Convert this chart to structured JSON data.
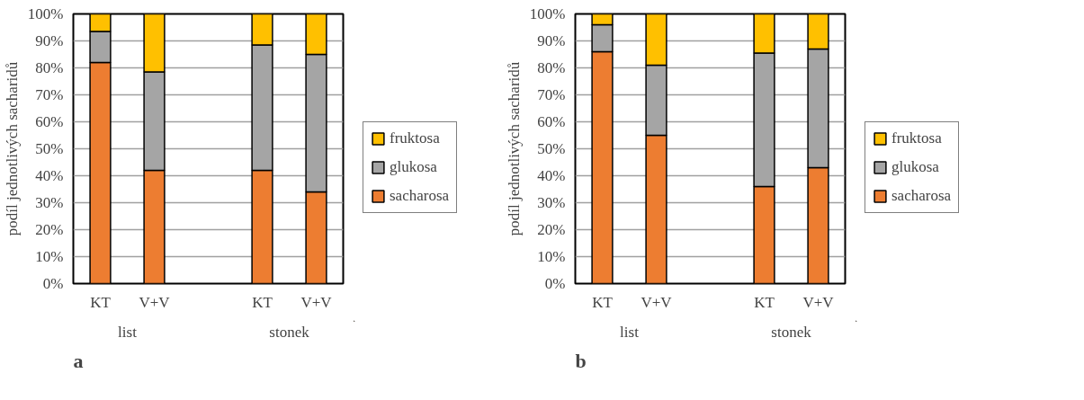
{
  "chart_data": [
    {
      "type": "bar",
      "stacked": true,
      "categories": [
        "KT",
        "V+V",
        null,
        "KT",
        "V+V"
      ],
      "ylabel": "podíl jednotlivých sacharidů",
      "ylim": [
        0,
        100
      ],
      "yticks": [
        {
          "value": 0,
          "label": "0%"
        },
        {
          "value": 10,
          "label": "10%"
        },
        {
          "value": 20,
          "label": "20%"
        },
        {
          "value": 30,
          "label": "30%"
        },
        {
          "value": 40,
          "label": "40%"
        },
        {
          "value": 50,
          "label": "50%"
        },
        {
          "value": 60,
          "label": "60%"
        },
        {
          "value": 70,
          "label": "70%"
        },
        {
          "value": 80,
          "label": "80%"
        },
        {
          "value": 90,
          "label": "90%"
        },
        {
          "value": 100,
          "label": "100%"
        }
      ],
      "grid": "y",
      "legend": "right",
      "annotations": [
        "list",
        "stonek",
        "a"
      ],
      "series": [
        {
          "name": "sacharosa",
          "color": "#ed7d31",
          "values": [
            82,
            42,
            null,
            42,
            34
          ]
        },
        {
          "name": "glukosa",
          "color": "#a5a5a5",
          "values": [
            11.5,
            36.5,
            null,
            46.5,
            51
          ]
        },
        {
          "name": "fruktosa",
          "color": "#ffc000",
          "values": [
            6.5,
            21.5,
            null,
            11.5,
            15
          ]
        }
      ]
    },
    {
      "type": "bar",
      "stacked": true,
      "categories": [
        "KT",
        "V+V",
        null,
        "KT",
        "V+V"
      ],
      "ylabel": "podíl jednotlivých sacharidů",
      "ylim": [
        0,
        100
      ],
      "yticks": [
        {
          "value": 0,
          "label": "0%"
        },
        {
          "value": 10,
          "label": "10%"
        },
        {
          "value": 20,
          "label": "20%"
        },
        {
          "value": 30,
          "label": "30%"
        },
        {
          "value": 40,
          "label": "40%"
        },
        {
          "value": 50,
          "label": "50%"
        },
        {
          "value": 60,
          "label": "60%"
        },
        {
          "value": 70,
          "label": "70%"
        },
        {
          "value": 80,
          "label": "80%"
        },
        {
          "value": 90,
          "label": "90%"
        },
        {
          "value": 100,
          "label": "100%"
        }
      ],
      "grid": "y",
      "legend": "right",
      "annotations": [
        "list",
        "stonek",
        "b"
      ],
      "series": [
        {
          "name": "sacharosa",
          "color": "#ed7d31",
          "values": [
            86,
            55,
            null,
            36,
            43
          ]
        },
        {
          "name": "glukosa",
          "color": "#a5a5a5",
          "values": [
            10,
            26,
            null,
            49.5,
            44
          ]
        },
        {
          "name": "fruktosa",
          "color": "#ffc000",
          "values": [
            4,
            19,
            null,
            14.5,
            13
          ]
        }
      ]
    }
  ]
}
